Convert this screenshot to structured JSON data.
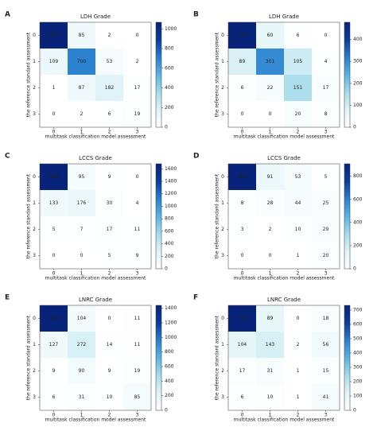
{
  "chart_data": [
    {
      "type": "heatmap",
      "label": "A",
      "title": "LDH Grade",
      "xlabel": "multitask classification model assessment",
      "ylabel": "the reference standard assessment",
      "xticks": [
        0,
        1,
        2,
        3
      ],
      "yticks": [
        0,
        1,
        2,
        3
      ],
      "values": [
        [
          1067,
          85,
          2,
          0
        ],
        [
          109,
          700,
          53,
          2
        ],
        [
          1,
          87,
          182,
          17
        ],
        [
          0,
          2,
          6,
          19
        ]
      ],
      "clim": [
        0,
        1067
      ],
      "cticks": [
        0,
        200,
        400,
        600,
        800,
        1000
      ]
    },
    {
      "type": "heatmap",
      "label": "B",
      "title": "LDH Grade",
      "xlabel": "multitask classification model assessment",
      "ylabel": "the reference standard assessment",
      "xticks": [
        0,
        1,
        2,
        3
      ],
      "yticks": [
        0,
        1,
        2,
        3
      ],
      "values": [
        [
          478,
          60,
          6,
          0
        ],
        [
          89,
          301,
          105,
          4
        ],
        [
          6,
          22,
          151,
          17
        ],
        [
          0,
          0,
          20,
          8
        ]
      ],
      "clim": [
        0,
        478
      ],
      "cticks": [
        0,
        100,
        200,
        300,
        400
      ]
    },
    {
      "type": "heatmap",
      "label": "C",
      "title": "LCCS Grade",
      "xlabel": "multitask classification model assessment",
      "ylabel": "the reference standard assessment",
      "xticks": [
        0,
        1,
        2,
        3
      ],
      "yticks": [
        0,
        1,
        2,
        3
      ],
      "values": [
        [
          1680,
          95,
          9,
          0
        ],
        [
          133,
          176,
          30,
          4
        ],
        [
          5,
          7,
          17,
          11
        ],
        [
          0,
          0,
          5,
          9
        ]
      ],
      "clim": [
        0,
        1680
      ],
      "cticks": [
        0,
        200,
        400,
        600,
        800,
        1000,
        1200,
        1400,
        1600
      ]
    },
    {
      "type": "heatmap",
      "label": "D",
      "title": "LCCS Grade",
      "xlabel": "multitask classification model assessment",
      "ylabel": "the reference standard assessment",
      "xticks": [
        0,
        1,
        2,
        3
      ],
      "yticks": [
        0,
        1,
        2,
        3
      ],
      "values": [
        [
          908,
          91,
          53,
          5
        ],
        [
          8,
          28,
          44,
          25
        ],
        [
          3,
          2,
          10,
          29
        ],
        [
          0,
          0,
          1,
          20
        ]
      ],
      "clim": [
        0,
        908
      ],
      "cticks": [
        0,
        200,
        400,
        600,
        800
      ]
    },
    {
      "type": "heatmap",
      "label": "E",
      "title": "LNRC Grade",
      "xlabel": "multitask classification model assessment",
      "ylabel": "the reference standard assessment",
      "xticks": [
        0,
        1,
        2,
        3
      ],
      "yticks": [
        0,
        1,
        2,
        3
      ],
      "values": [
        [
          1440,
          104,
          0,
          11
        ],
        [
          127,
          272,
          14,
          11
        ],
        [
          9,
          90,
          9,
          19
        ],
        [
          6,
          31,
          10,
          85
        ]
      ],
      "clim": [
        0,
        1440
      ],
      "cticks": [
        0,
        200,
        400,
        600,
        800,
        1000,
        1200,
        1400
      ]
    },
    {
      "type": "heatmap",
      "label": "F",
      "title": "LNRC Grade",
      "xlabel": "multitask classification model assessment",
      "ylabel": "the reference standard assessment",
      "xticks": [
        0,
        1,
        2,
        3
      ],
      "yticks": [
        0,
        1,
        2,
        3
      ],
      "values": [
        [
          733,
          89,
          0,
          18
        ],
        [
          104,
          143,
          2,
          56
        ],
        [
          17,
          31,
          1,
          15
        ],
        [
          6,
          10,
          1,
          41
        ]
      ],
      "clim": [
        0,
        733
      ],
      "cticks": [
        0,
        100,
        200,
        300,
        400,
        500,
        600,
        700
      ]
    }
  ]
}
